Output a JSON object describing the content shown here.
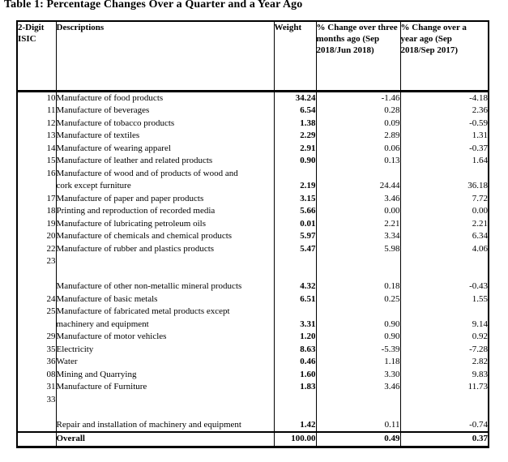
{
  "title": "Table 1: Percentage Changes Over a Quarter and a Year Ago",
  "table": {
    "headers": {
      "isic": "2-Digit\nISIC",
      "descriptions": "Descriptions",
      "weight": "Weight",
      "q_change": "% Change over three\nmonths ago (Sep\n2018/Jun 2018)",
      "y_change": "% Change over a\nyear ago (Sep\n2018/Sep 2017)"
    },
    "rows": [
      {
        "isic": "10",
        "desc": "Manufacture of food products",
        "weight": "34.24",
        "q": "-1.46",
        "y": "-4.18"
      },
      {
        "isic": "11",
        "desc": "Manufacture of beverages",
        "weight": "6.54",
        "q": "0.28",
        "y": "2.36"
      },
      {
        "isic": "12",
        "desc": "Manufacture of tobacco products",
        "weight": "1.38",
        "q": "0.09",
        "y": "-0.59"
      },
      {
        "isic": "13",
        "desc": "Manufacture of textiles",
        "weight": "2.29",
        "q": "2.89",
        "y": "1.31"
      },
      {
        "isic": "14",
        "desc": "Manufacture of wearing apparel",
        "weight": "2.91",
        "q": "0.06",
        "y": "-0.37"
      },
      {
        "isic": "15",
        "desc": "Manufacture of leather and related products",
        "weight": "0.90",
        "q": "0.13",
        "y": "1.64"
      },
      {
        "isic": "16",
        "desc": "Manufacture of wood and of products of wood and\ncork except furniture",
        "weight": "2.19",
        "q": "24.44",
        "y": "36.18"
      },
      {
        "isic": "17",
        "desc": "Manufacture of paper and paper products",
        "weight": "3.15",
        "q": "3.46",
        "y": "7.72"
      },
      {
        "isic": "18",
        "desc": "Printing and reproduction of recorded media",
        "weight": "5.66",
        "q": "0.00",
        "y": "0.00"
      },
      {
        "isic": "19",
        "desc": "Manufacture of lubricating petroleum oils",
        "weight": "0.01",
        "q": "2.21",
        "y": "2.21"
      },
      {
        "isic": "20",
        "desc": "Manufacture of chemicals and chemical products",
        "weight": "5.97",
        "q": "3.34",
        "y": "6.34"
      },
      {
        "isic": "22",
        "desc": "Manufacture of rubber and plastics products",
        "weight": "5.47",
        "q": "5.98",
        "y": "4.06"
      },
      {
        "isic": "23",
        "desc": "\n\nManufacture of other non-metallic mineral products",
        "weight": "4.32",
        "q": "0.18",
        "y": "-0.43"
      },
      {
        "isic": "24",
        "desc": "Manufacture of basic metals",
        "weight": "6.51",
        "q": "0.25",
        "y": "1.55"
      },
      {
        "isic": "25",
        "desc": "Manufacture of fabricated metal products except\nmachinery and equipment",
        "weight": "3.31",
        "q": "0.90",
        "y": "9.14"
      },
      {
        "isic": "29",
        "desc": "Manufacture of motor vehicles",
        "weight": "1.20",
        "q": "0.90",
        "y": "0.92"
      },
      {
        "isic": "35",
        "desc": "Electricity",
        "weight": "8.63",
        "q": "-5.39",
        "y": "-7.28"
      },
      {
        "isic": "36",
        "desc": "Water",
        "weight": "0.46",
        "q": "1.18",
        "y": "2.82"
      },
      {
        "isic": "08",
        "desc": "Mining and Quarrying",
        "weight": "1.60",
        "q": "3.30",
        "y": "9.83"
      },
      {
        "isic": "31",
        "desc": "Manufacture of Furniture",
        "weight": "1.83",
        "q": "3.46",
        "y": "11.73"
      },
      {
        "isic": "33",
        "desc": "\n\nRepair and installation of machinery and equipment",
        "weight": "1.42",
        "q": "0.11",
        "y": "-0.74"
      }
    ],
    "overall": {
      "isic": "",
      "label": "Overall",
      "weight": "100.00",
      "q": "0.49",
      "y": "0.37"
    }
  }
}
